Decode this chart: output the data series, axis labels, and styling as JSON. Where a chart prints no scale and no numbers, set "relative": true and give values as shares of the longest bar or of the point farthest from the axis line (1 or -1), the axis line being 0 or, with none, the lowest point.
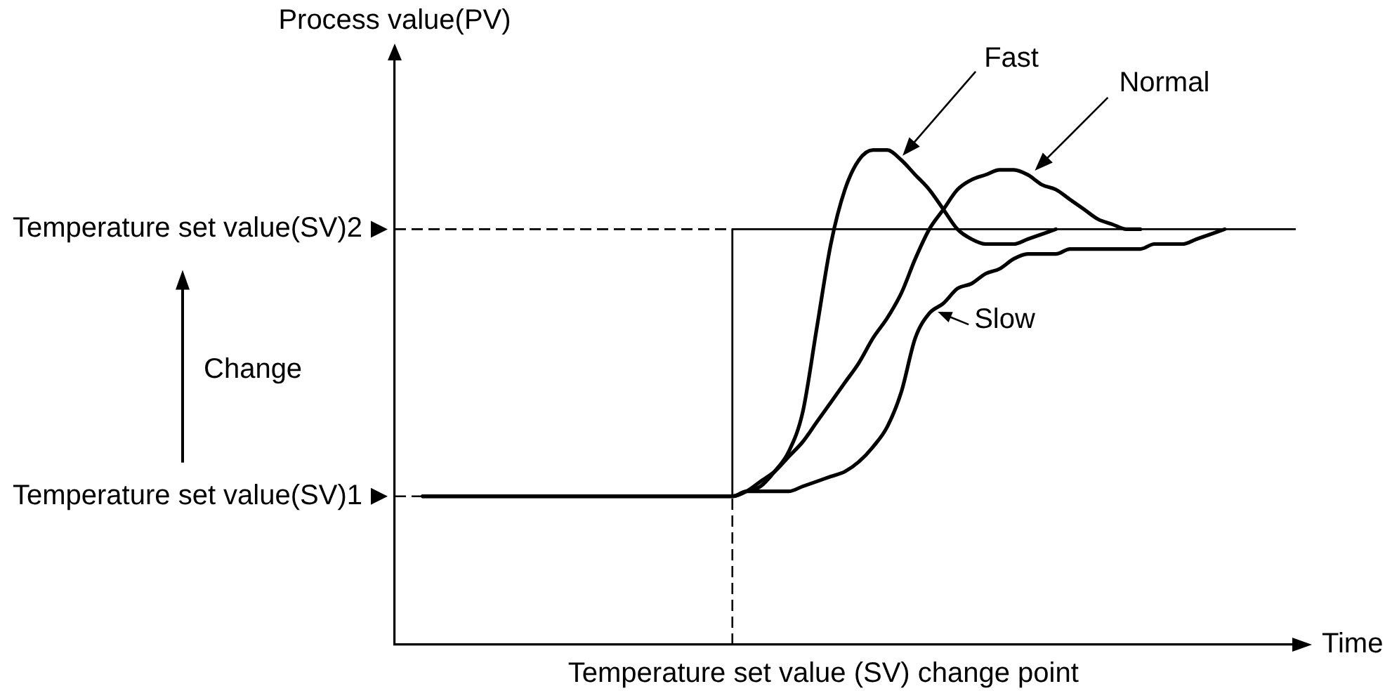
{
  "chart_data": {
    "type": "line",
    "relative": true,
    "xlabel": "Time",
    "ylabel": "Process value(PV)",
    "annotations": [
      "Change",
      "Temperature set value (SV) change point"
    ],
    "categories": [
      null,
      null,
      null,
      null,
      null,
      null,
      null,
      null,
      null,
      null,
      null,
      null,
      null,
      null,
      null,
      null,
      null,
      null,
      null,
      null,
      null,
      null,
      null,
      null,
      null,
      null,
      null,
      null,
      null,
      null,
      null,
      null,
      null,
      null,
      null,
      null,
      null,
      null,
      null,
      null,
      null,
      null,
      null,
      null,
      null,
      null,
      null,
      null,
      null,
      null,
      null,
      null,
      null,
      null,
      null,
      null,
      null,
      null,
      null,
      null,
      null,
      null,
      null,
      null,
      null
    ],
    "series": [
      {
        "type": "step",
        "color": "#000000",
        "values": [
          null,
          null,
          null,
          null,
          null,
          null,
          null,
          null,
          null,
          null,
          null,
          null,
          null,
          null,
          null,
          null,
          null,
          null,
          null,
          null,
          null,
          null,
          null,
          null,
          0.3,
          0.84,
          0.84,
          0.84,
          0.84,
          0.84,
          0.84,
          0.84,
          0.84,
          0.84,
          0.84,
          0.84,
          0.84,
          0.84,
          0.84,
          0.84,
          0.84,
          0.84,
          0.84,
          0.84,
          0.84,
          0.84,
          0.84,
          0.84,
          0.84,
          0.84,
          0.84,
          0.84,
          0.84,
          0.84,
          0.84,
          0.84,
          0.84,
          0.84,
          0.84,
          0.84,
          0.84,
          0.84,
          0.84,
          0.84,
          0.84
        ]
      },
      {
        "name": "Fast",
        "color": "#000000",
        "values": [
          null,
          null,
          0.3,
          0.3,
          0.3,
          0.3,
          0.3,
          0.3,
          0.3,
          0.3,
          0.3,
          0.3,
          0.3,
          0.3,
          0.3,
          0.3,
          0.3,
          0.3,
          0.3,
          0.3,
          0.3,
          0.3,
          0.3,
          0.3,
          0.3,
          0.31,
          0.32,
          0.35,
          0.39,
          0.47,
          0.64,
          0.81,
          0.92,
          0.98,
          1,
          1,
          0.98,
          0.95,
          0.92,
          0.88,
          0.84,
          0.82,
          0.81,
          0.81,
          0.81,
          0.82,
          0.83,
          0.84,
          null,
          null,
          null,
          null,
          null,
          null,
          null,
          null,
          null,
          null,
          null,
          null,
          null,
          null,
          null,
          null,
          null
        ]
      },
      {
        "name": "Normal",
        "color": "#000000",
        "values": [
          null,
          null,
          0.3,
          0.3,
          0.3,
          0.3,
          0.3,
          0.3,
          0.3,
          0.3,
          0.3,
          0.3,
          0.3,
          0.3,
          0.3,
          0.3,
          0.3,
          0.3,
          0.3,
          0.3,
          0.3,
          0.3,
          0.3,
          0.3,
          0.3,
          0.31,
          0.33,
          0.35,
          0.38,
          0.41,
          0.45,
          0.49,
          0.53,
          0.57,
          0.62,
          0.66,
          0.71,
          0.78,
          0.84,
          0.88,
          0.92,
          0.94,
          0.95,
          0.96,
          0.96,
          0.95,
          0.93,
          0.92,
          0.9,
          0.88,
          0.86,
          0.85,
          0.84,
          0.84,
          null,
          null,
          null,
          null,
          null,
          null,
          null,
          null,
          null,
          null,
          null
        ]
      },
      {
        "name": "Slow",
        "color": "#000000",
        "values": [
          null,
          null,
          0.3,
          0.3,
          0.3,
          0.3,
          0.3,
          0.3,
          0.3,
          0.3,
          0.3,
          0.3,
          0.3,
          0.3,
          0.3,
          0.3,
          0.3,
          0.3,
          0.3,
          0.3,
          0.3,
          0.3,
          0.3,
          0.3,
          0.3,
          0.31,
          0.31,
          0.31,
          0.31,
          0.32,
          0.33,
          0.34,
          0.35,
          0.37,
          0.4,
          0.44,
          0.51,
          0.62,
          0.67,
          0.69,
          0.72,
          0.73,
          0.75,
          0.76,
          0.78,
          0.79,
          0.79,
          0.79,
          0.8,
          0.8,
          0.8,
          0.8,
          0.8,
          0.8,
          0.81,
          0.81,
          0.81,
          0.82,
          0.83,
          0.84,
          null,
          null,
          null,
          null,
          null
        ]
      }
    ],
    "ref_lines": [
      {
        "axis": "y",
        "value": 0.3,
        "label": "Temperature set value(SV)1",
        "line_style": "dashed"
      },
      {
        "axis": "y",
        "value": 0.84,
        "label": "Temperature set value(SV)2",
        "line_style": "dashed"
      }
    ],
    "grid": false,
    "legend": false,
    "marker": "none",
    "line_style": "solid"
  }
}
